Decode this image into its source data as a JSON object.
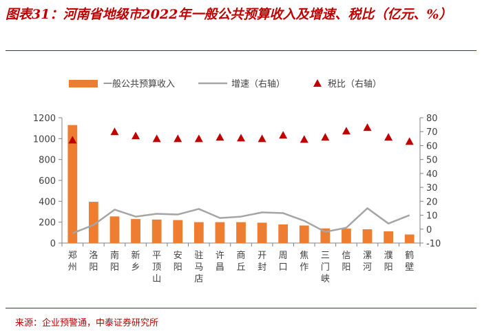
{
  "header": {
    "title": "图表31：河南省地级市2022年一般公共预算收入及增速、税比（亿元、%）"
  },
  "footer": {
    "source": "来源：企业预警通，中泰证券研究所"
  },
  "colors": {
    "bar": "#ed7d31",
    "line": "#a5a5a5",
    "marker": "#c00000",
    "accent": "#c00000"
  },
  "chart_data": {
    "type": "bar",
    "title": "河南省地级市2022年一般公共预算收入及增速、税比（亿元、%）",
    "categories": [
      "郑州",
      "洛阳",
      "南阳",
      "新乡",
      "平顶山",
      "安阳",
      "驻马店",
      "许昌",
      "商丘",
      "开封",
      "周口",
      "焦作",
      "三门峡",
      "信阳",
      "漯河",
      "濮阳",
      "鹤壁"
    ],
    "series": [
      {
        "name": "一般公共预算收入",
        "type": "bar",
        "axis": "left",
        "values": [
          1130,
          395,
          255,
          230,
          225,
          220,
          200,
          200,
          200,
          195,
          178,
          168,
          140,
          138,
          132,
          112,
          82
        ]
      },
      {
        "name": "增速（右轴）",
        "type": "line",
        "axis": "right",
        "values": [
          -3,
          3,
          14,
          9,
          11,
          10.5,
          14.5,
          8,
          9,
          12,
          11.5,
          6,
          -2,
          1,
          15,
          4,
          10
        ]
      },
      {
        "name": "税比（右轴）",
        "type": "marker",
        "axis": "right",
        "values": [
          64,
          null,
          70,
          67,
          65,
          65,
          65,
          66,
          65.5,
          65,
          67.5,
          64.5,
          66,
          70.5,
          73,
          66,
          63
        ]
      }
    ],
    "ylim_left": [
      0,
      1200
    ],
    "yticks_left": [
      "0",
      "200",
      "400",
      "600",
      "800",
      "1000",
      "1200"
    ],
    "ylim_right": [
      -10,
      80
    ],
    "yticks_right": [
      "-10",
      "0",
      "10",
      "20",
      "30",
      "40",
      "50",
      "60",
      "70",
      "80"
    ],
    "legend_position": "top"
  }
}
